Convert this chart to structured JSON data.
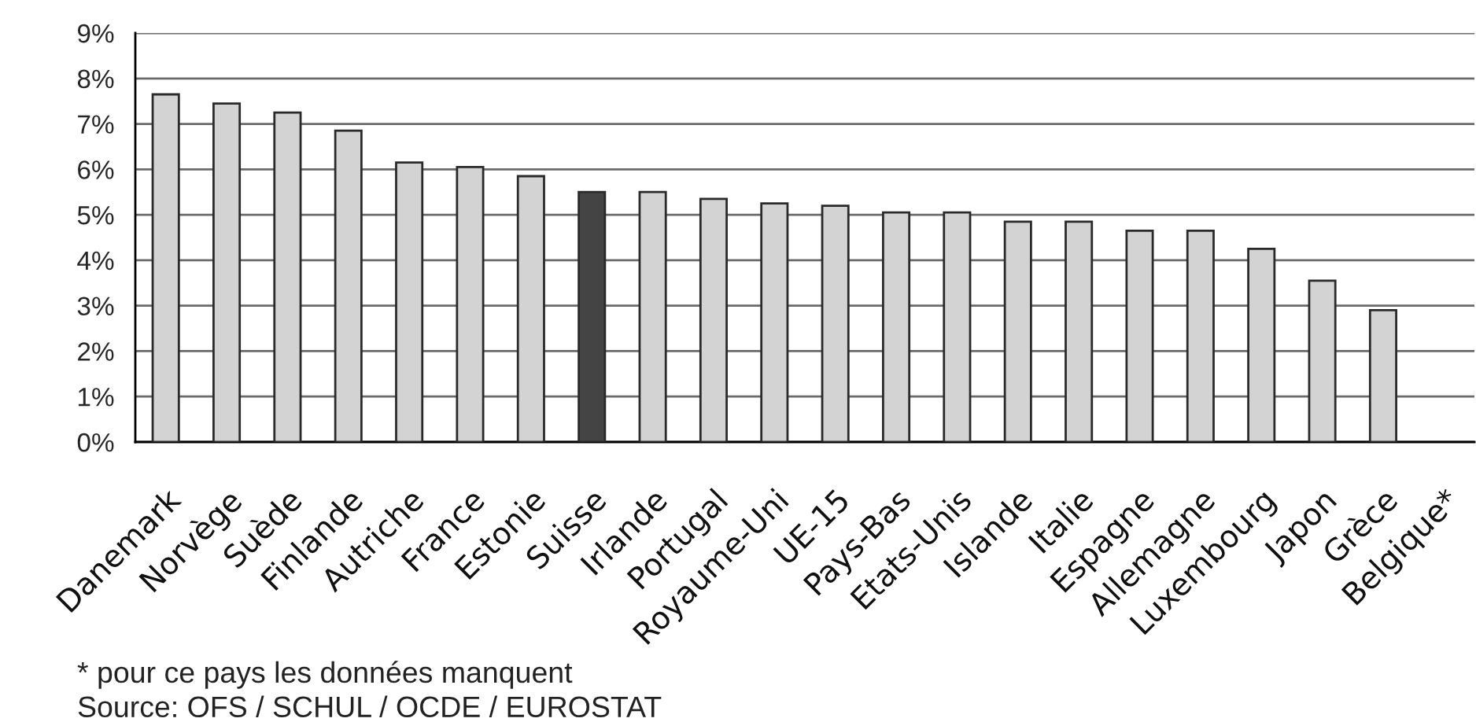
{
  "chart_data": {
    "type": "bar",
    "categories": [
      "Danemark",
      "Norvège",
      "Suède",
      "Finlande",
      "Autriche",
      "France",
      "Estonie",
      "Suisse",
      "Irlande",
      "Portugal",
      "Royaume-Uni",
      "UE-15",
      "Pays-Bas",
      "Etats-Unis",
      "Islande",
      "Italie",
      "Espagne",
      "Allemagne",
      "Luxembourg",
      "Japon",
      "Grèce",
      "Belgique*"
    ],
    "values": [
      7.65,
      7.45,
      7.25,
      6.85,
      6.15,
      6.05,
      5.85,
      5.5,
      5.5,
      5.35,
      5.25,
      5.2,
      5.05,
      5.05,
      4.85,
      4.85,
      4.65,
      4.65,
      4.25,
      3.55,
      2.9,
      null
    ],
    "colors": [
      "#d3d3d3",
      "#d3d3d3",
      "#d3d3d3",
      "#d3d3d3",
      "#d3d3d3",
      "#d3d3d3",
      "#d3d3d3",
      "#444444",
      "#d3d3d3",
      "#d3d3d3",
      "#d3d3d3",
      "#d3d3d3",
      "#d3d3d3",
      "#d3d3d3",
      "#d3d3d3",
      "#d3d3d3",
      "#d3d3d3",
      "#d3d3d3",
      "#d3d3d3",
      "#d3d3d3",
      "#d3d3d3",
      "#d3d3d3"
    ],
    "ylim": [
      0,
      9
    ],
    "yticks": [
      {
        "value": 0,
        "label": "0%"
      },
      {
        "value": 1,
        "label": "1%"
      },
      {
        "value": 2,
        "label": "2%"
      },
      {
        "value": 3,
        "label": "3%"
      },
      {
        "value": 4,
        "label": "4%"
      },
      {
        "value": 5,
        "label": "5%"
      },
      {
        "value": 6,
        "label": "6%"
      },
      {
        "value": 7,
        "label": "7%"
      },
      {
        "value": 8,
        "label": "8%"
      },
      {
        "value": 9,
        "label": "9%"
      }
    ],
    "grid": "y",
    "annotations": [
      "* pour ce pays les données manquent",
      "Source: OFS / SCHUL / OCDE / EUROSTAT"
    ]
  }
}
